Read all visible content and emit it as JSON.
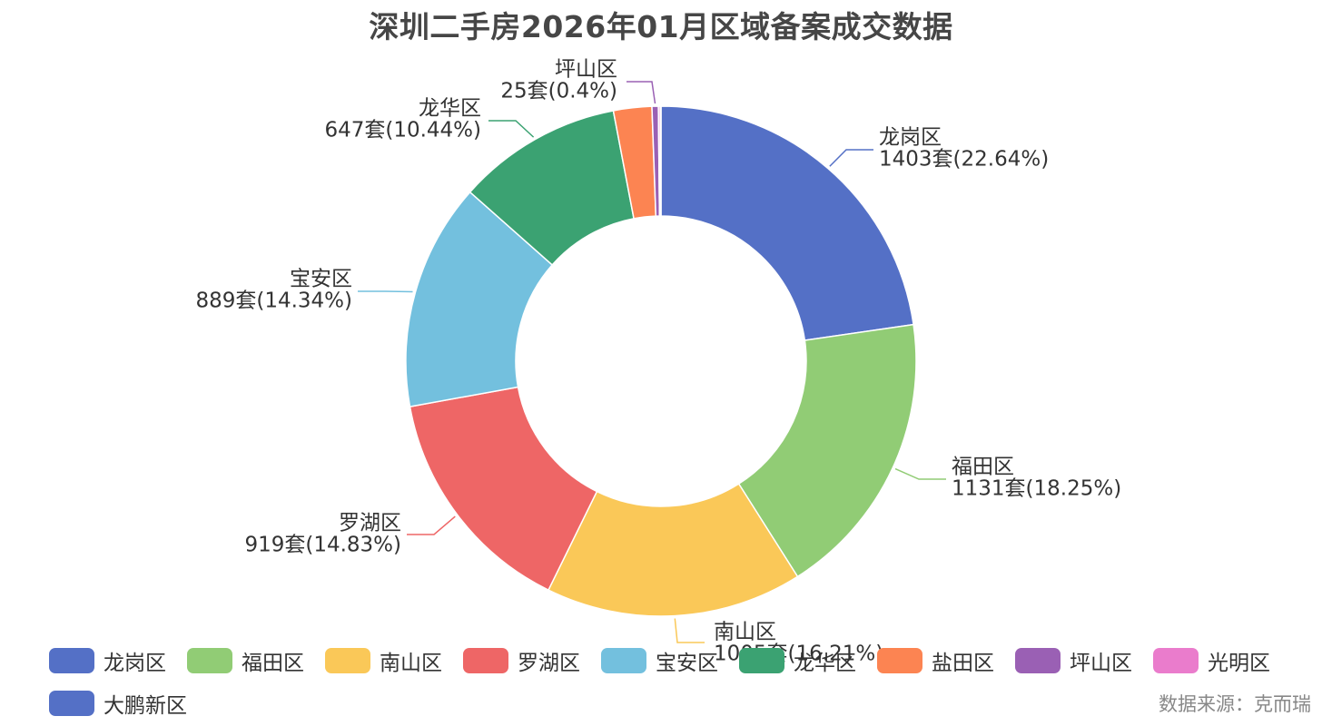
{
  "chart_data": {
    "type": "pie",
    "variant": "donut",
    "title": "深圳二手房2026年01月区域备案成交数据",
    "unit": "套",
    "series": [
      {
        "name": "龙岗区",
        "value": 1403,
        "percent_label": "22.64%",
        "color": "#5470c6"
      },
      {
        "name": "福田区",
        "value": 1131,
        "percent_label": "18.25%",
        "color": "#91cc75"
      },
      {
        "name": "南山区",
        "value": 1005,
        "percent_label": "16.21%",
        "color": "#fac858"
      },
      {
        "name": "罗湖区",
        "value": 919,
        "percent_label": "14.83%",
        "color": "#ee6666"
      },
      {
        "name": "宝安区",
        "value": 889,
        "percent_label": "14.34%",
        "color": "#73c0de"
      },
      {
        "name": "龙华区",
        "value": 647,
        "percent_label": "10.44%",
        "color": "#3ba272"
      },
      {
        "name": "盐田区",
        "value": 150,
        "color": "#fc8452"
      },
      {
        "name": "坪山区",
        "value": 25,
        "percent_label": "0.4%",
        "color": "#9a60b4"
      },
      {
        "name": "光明区",
        "value": 7,
        "color": "#ea7ccc"
      },
      {
        "name": "大鹏新区",
        "value": 3,
        "color": "#5470c6"
      }
    ],
    "labeled_slices": [
      "龙岗区",
      "福田区",
      "南山区",
      "罗湖区",
      "宝安区",
      "龙华区",
      "坪山区"
    ],
    "legend": {
      "position": "bottom",
      "items": [
        "龙岗区",
        "福田区",
        "南山区",
        "罗湖区",
        "宝安区",
        "龙华区",
        "盐田区",
        "坪山区",
        "光明区",
        "大鹏新区"
      ]
    }
  },
  "source_note": "数据来源：克而瑞"
}
